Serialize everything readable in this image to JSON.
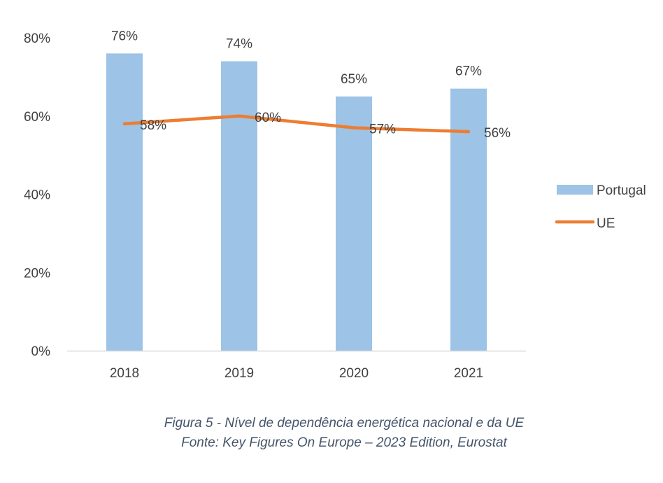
{
  "chart_data": {
    "type": "bar",
    "categories": [
      "2018",
      "2019",
      "2020",
      "2021"
    ],
    "series": [
      {
        "name": "Portugal",
        "kind": "bar",
        "values": [
          76,
          74,
          65,
          67
        ],
        "labels": [
          "76%",
          "74%",
          "65%",
          "67%"
        ],
        "color": "#9dc3e6"
      },
      {
        "name": "UE",
        "kind": "line",
        "values": [
          58,
          60,
          57,
          56
        ],
        "labels": [
          "58%",
          "60%",
          "57%",
          "56%"
        ],
        "color": "#ed7d31"
      }
    ],
    "yticks": [
      "0%",
      "20%",
      "40%",
      "60%",
      "80%"
    ],
    "ylim": [
      0,
      80
    ],
    "legend_position": "right",
    "grid": false,
    "axis_color": "#d9d9d9",
    "text_color": "#404040"
  },
  "caption": {
    "line1": "Figura 5 - Nível de dependência energética nacional e da UE",
    "line2": "Fonte: Key Figures On Europe – 2023 Edition, Eurostat",
    "color": "#44546a"
  }
}
